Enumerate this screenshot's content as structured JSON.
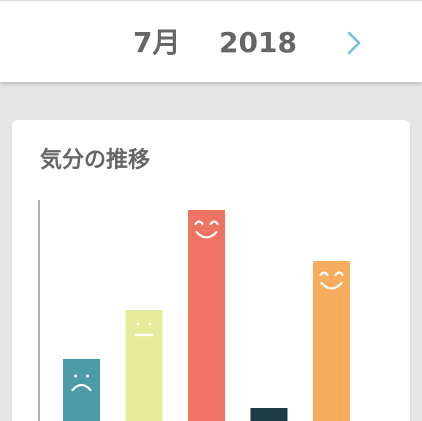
{
  "header": {
    "month": "7月",
    "year": "2018"
  },
  "card": {
    "title": "気分の推移"
  },
  "colors": {
    "next_arrow": "#6fc2d3",
    "axis": "#999999"
  },
  "chart_data": {
    "type": "bar",
    "categories": [
      "sad",
      "neutral",
      "happy",
      "very-sad",
      "smile"
    ],
    "values": [
      62,
      111,
      211,
      13,
      160
    ],
    "colors": [
      "#4b9ba8",
      "#e4eb9b",
      "#ef7363",
      "#1d3a48",
      "#f8ac5e"
    ],
    "faces": [
      "frown",
      "neutral",
      "grin",
      "none",
      "smile"
    ],
    "title": "",
    "xlabel": "",
    "ylabel": "",
    "grid": false
  }
}
